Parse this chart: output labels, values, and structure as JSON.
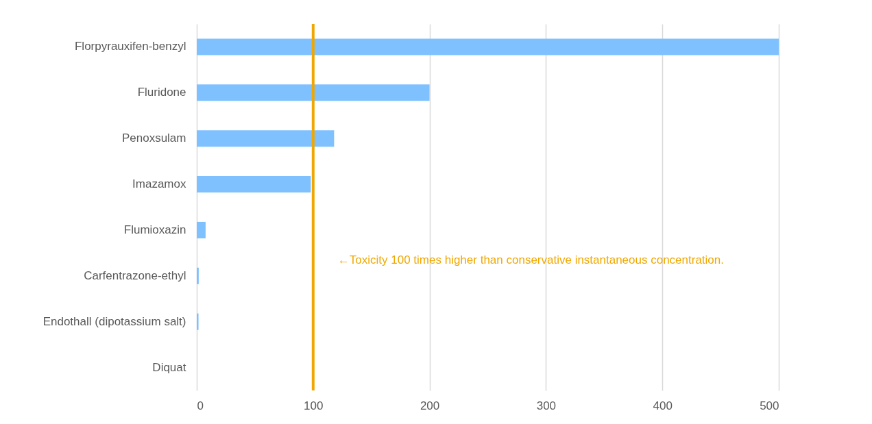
{
  "chart_data": {
    "type": "bar",
    "orientation": "horizontal",
    "categories": [
      "Florpyrauxifen-benzyl",
      "Fluridone",
      "Penoxsulam",
      "Imazamox",
      "Flumioxazin",
      "Carfentrazone-ethyl",
      "Endothall (dipotassium salt)",
      "Diquat"
    ],
    "values": [
      500,
      200,
      118,
      98,
      7.6,
      1.7,
      1.5,
      0
    ],
    "color": "#7fc1ff",
    "xlim": [
      0,
      500
    ],
    "xticks": [
      0,
      100,
      200,
      300,
      400,
      500
    ],
    "grid": "x",
    "ref_lines": [
      {
        "axis": "x",
        "value": 100,
        "label": "←Toxicity 100 times higher than conservative instantaneous concentration.",
        "color": "#f0a800"
      }
    ]
  }
}
